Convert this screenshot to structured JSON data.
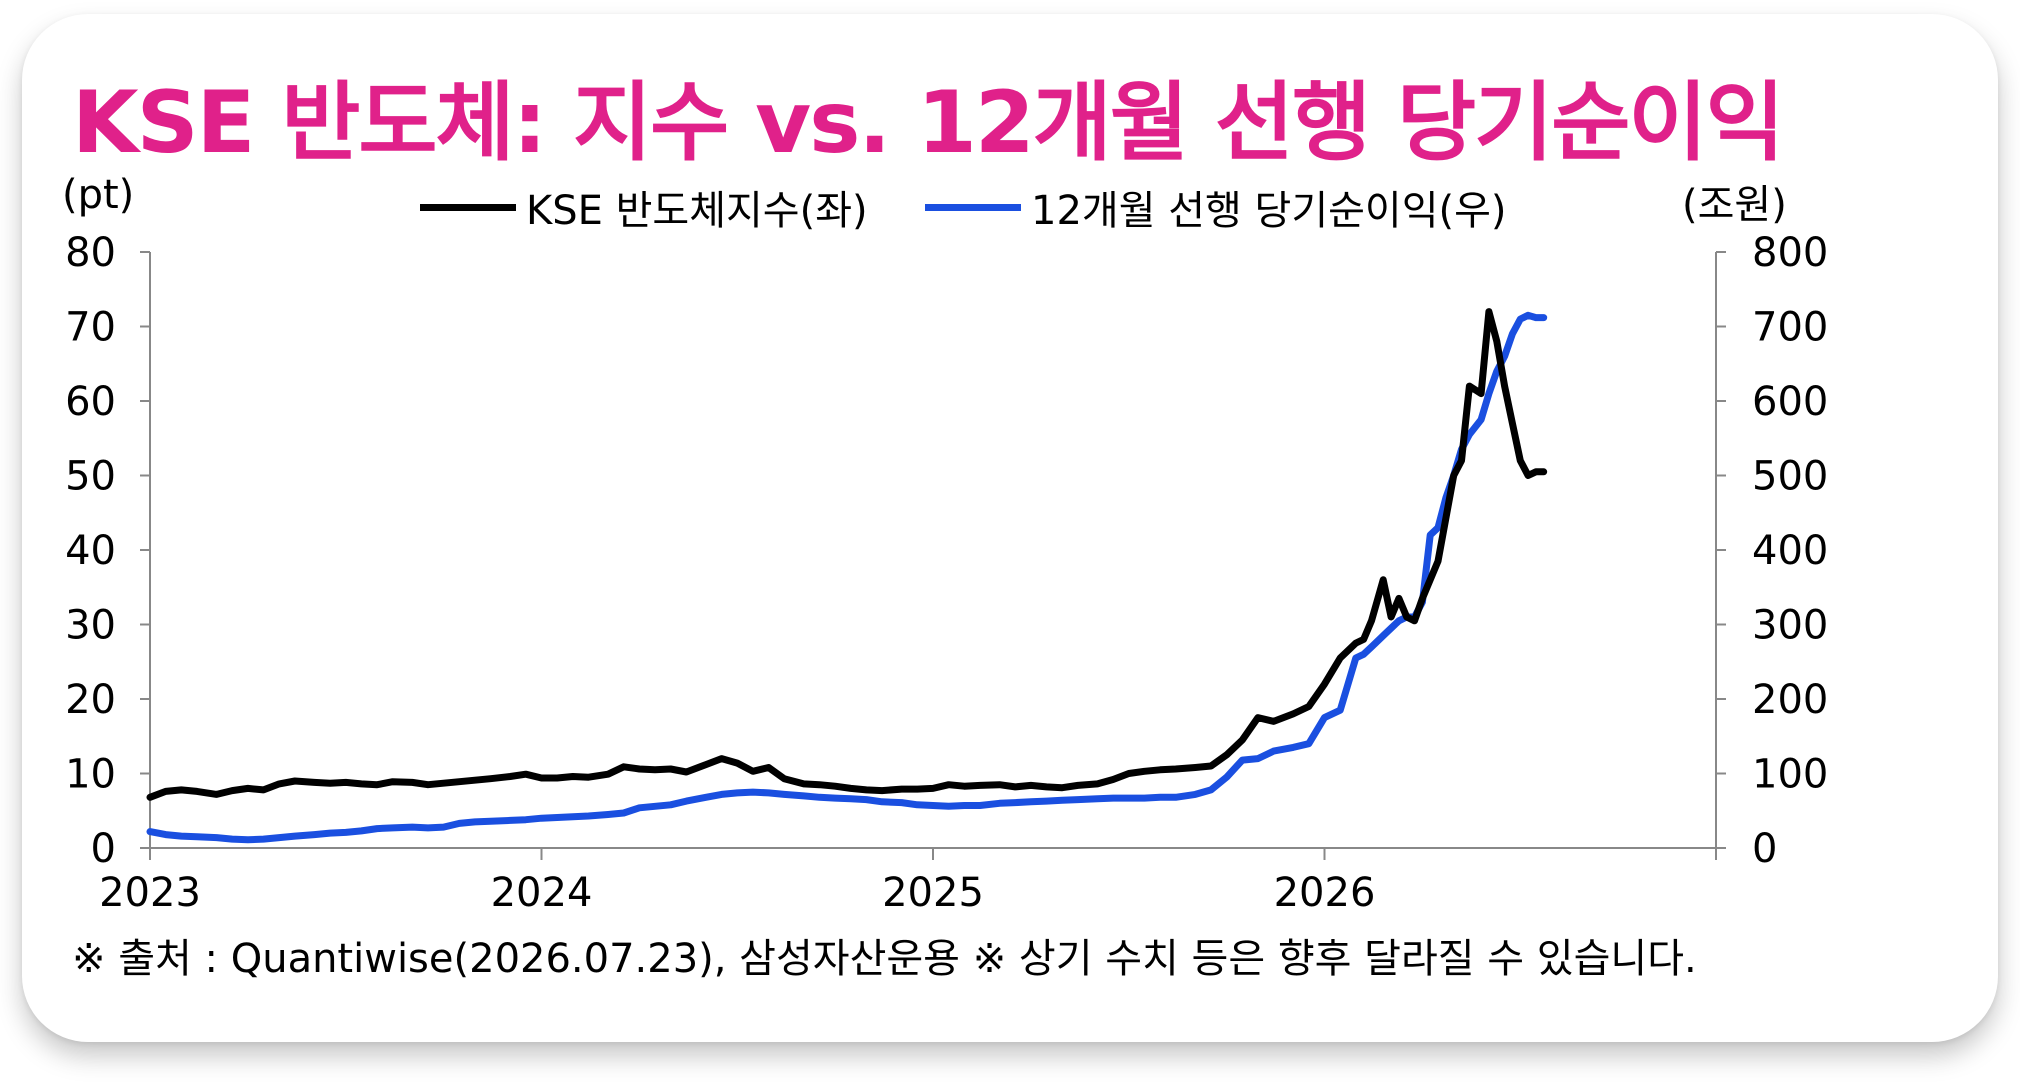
{
  "title": "KSE 반도체: 지수 vs. 12개월 선행 당기순이익",
  "left_unit": "(pt)",
  "right_unit": "(조원)",
  "legend": [
    {
      "label": "KSE 반도체지수(좌)",
      "color": "#000000"
    },
    {
      "label": "12개월 선행 당기순이익(우)",
      "color": "#1a4fe0"
    }
  ],
  "footnote": "※ 출처 : Quantiwise(2026.07.23), 삼성자산운용 ※ 상기 수치 등은 향후 달라질 수 있습니다.",
  "colors": {
    "title": "#e0218a",
    "index_line": "#000000",
    "earnings_line": "#1a4fe0"
  },
  "chart_data": {
    "type": "line",
    "title": "KSE 반도체: 지수 vs. 12개월 선행 당기순이익",
    "x_ticks": [
      "2023",
      "2024",
      "2025",
      "2026"
    ],
    "x_range": [
      2023.0,
      2027.0
    ],
    "y_left": {
      "label": "(pt)",
      "range": [
        0,
        80
      ],
      "ticks": [
        0,
        10,
        20,
        30,
        40,
        50,
        60,
        70,
        80
      ]
    },
    "y_right": {
      "label": "(조원)",
      "range": [
        0,
        800
      ],
      "ticks": [
        0,
        100,
        200,
        300,
        400,
        500,
        600,
        700,
        800
      ]
    },
    "grid": false,
    "legend_position": "top",
    "series": [
      {
        "name": "KSE 반도체지수(좌)",
        "axis": "left",
        "x": [
          2023.0,
          2023.04,
          2023.08,
          2023.12,
          2023.17,
          2023.21,
          2023.25,
          2023.29,
          2023.33,
          2023.37,
          2023.42,
          2023.46,
          2023.5,
          2023.54,
          2023.58,
          2023.62,
          2023.67,
          2023.71,
          2023.75,
          2023.79,
          2023.83,
          2023.87,
          2023.92,
          2023.96,
          2024.0,
          2024.04,
          2024.08,
          2024.12,
          2024.17,
          2024.21,
          2024.25,
          2024.29,
          2024.33,
          2024.37,
          2024.42,
          2024.46,
          2024.5,
          2024.54,
          2024.58,
          2024.62,
          2024.67,
          2024.71,
          2024.75,
          2024.79,
          2024.83,
          2024.87,
          2024.92,
          2024.96,
          2025.0,
          2025.04,
          2025.08,
          2025.12,
          2025.17,
          2025.21,
          2025.25,
          2025.29,
          2025.33,
          2025.37,
          2025.42,
          2025.46,
          2025.5,
          2025.54,
          2025.58,
          2025.62,
          2025.67,
          2025.71,
          2025.75,
          2025.79,
          2025.83,
          2025.87,
          2025.92,
          2025.96,
          2026.0,
          2026.04,
          2026.08,
          2026.1,
          2026.12,
          2026.15,
          2026.17,
          2026.19,
          2026.21,
          2026.23,
          2026.25,
          2026.29,
          2026.33,
          2026.35,
          2026.37,
          2026.4,
          2026.42,
          2026.44,
          2026.46,
          2026.48,
          2026.5,
          2026.52,
          2026.54,
          2026.56
        ],
        "values": [
          6.8,
          7.6,
          7.8,
          7.6,
          7.2,
          7.7,
          8.0,
          7.8,
          8.6,
          9.0,
          8.8,
          8.7,
          8.8,
          8.6,
          8.5,
          8.9,
          8.8,
          8.5,
          8.7,
          8.9,
          9.1,
          9.3,
          9.6,
          9.9,
          9.4,
          9.4,
          9.6,
          9.5,
          9.9,
          10.9,
          10.6,
          10.5,
          10.6,
          10.2,
          11.2,
          12.0,
          11.4,
          10.3,
          10.8,
          9.3,
          8.6,
          8.5,
          8.3,
          8.0,
          7.8,
          7.7,
          7.9,
          7.9,
          8.0,
          8.5,
          8.3,
          8.4,
          8.5,
          8.2,
          8.4,
          8.2,
          8.1,
          8.4,
          8.6,
          9.2,
          10.0,
          10.3,
          10.5,
          10.6,
          10.8,
          11.0,
          12.5,
          14.5,
          17.5,
          17.0,
          18.0,
          19.0,
          22.0,
          25.5,
          27.5,
          28.0,
          30.5,
          36.0,
          31.0,
          33.5,
          31.0,
          30.5,
          33.5,
          38.5,
          50.0,
          52.0,
          62.0,
          61.0,
          72.0,
          68.0,
          62.0,
          57.0,
          52.0,
          50.0,
          50.5,
          50.5
        ]
      },
      {
        "name": "12개월 선행 당기순이익(우)",
        "axis": "right",
        "x": [
          2023.0,
          2023.04,
          2023.08,
          2023.12,
          2023.17,
          2023.21,
          2023.25,
          2023.29,
          2023.33,
          2023.37,
          2023.42,
          2023.46,
          2023.5,
          2023.54,
          2023.58,
          2023.62,
          2023.67,
          2023.71,
          2023.75,
          2023.79,
          2023.83,
          2023.87,
          2023.92,
          2023.96,
          2024.0,
          2024.04,
          2024.08,
          2024.12,
          2024.17,
          2024.21,
          2024.25,
          2024.29,
          2024.33,
          2024.37,
          2024.42,
          2024.46,
          2024.5,
          2024.54,
          2024.58,
          2024.62,
          2024.67,
          2024.71,
          2024.75,
          2024.79,
          2024.83,
          2024.87,
          2024.92,
          2024.96,
          2025.0,
          2025.04,
          2025.08,
          2025.12,
          2025.17,
          2025.21,
          2025.25,
          2025.29,
          2025.33,
          2025.37,
          2025.42,
          2025.46,
          2025.5,
          2025.54,
          2025.58,
          2025.62,
          2025.67,
          2025.71,
          2025.75,
          2025.79,
          2025.83,
          2025.87,
          2025.92,
          2025.96,
          2026.0,
          2026.04,
          2026.08,
          2026.1,
          2026.12,
          2026.15,
          2026.17,
          2026.19,
          2026.21,
          2026.23,
          2026.25,
          2026.27,
          2026.29,
          2026.31,
          2026.33,
          2026.35,
          2026.37,
          2026.4,
          2026.42,
          2026.44,
          2026.46,
          2026.48,
          2026.5,
          2026.52,
          2026.54,
          2026.56
        ],
        "values": [
          22,
          18,
          16,
          15,
          14,
          12,
          11,
          12,
          14,
          16,
          18,
          20,
          21,
          23,
          26,
          27,
          28,
          27,
          28,
          33,
          35,
          36,
          37,
          38,
          40,
          41,
          42,
          43,
          45,
          47,
          54,
          56,
          58,
          63,
          68,
          72,
          74,
          75,
          74,
          72,
          70,
          68,
          67,
          66,
          65,
          62,
          61,
          58,
          57,
          56,
          57,
          57,
          60,
          61,
          62,
          63,
          64,
          65,
          66,
          67,
          67,
          67,
          68,
          68,
          72,
          78,
          95,
          118,
          120,
          130,
          135,
          140,
          175,
          185,
          255,
          260,
          270,
          285,
          295,
          305,
          310,
          310,
          330,
          420,
          430,
          470,
          500,
          535,
          555,
          575,
          610,
          640,
          660,
          690,
          710,
          715,
          712,
          712
        ]
      }
    ]
  }
}
